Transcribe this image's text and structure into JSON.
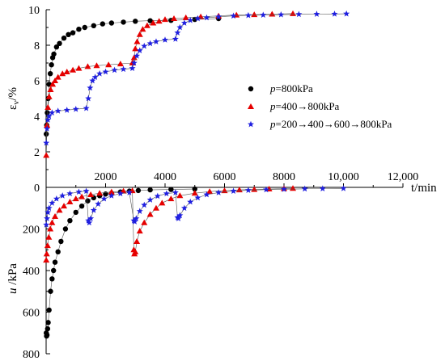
{
  "chart_data": {
    "type": "scatter",
    "x_axis": {
      "label": "t/min",
      "ticks": [
        2000,
        4000,
        6000,
        8000,
        10000,
        12000
      ],
      "tick_labels": [
        "2000",
        "4000",
        "6000",
        "8000",
        "10,000",
        "12,000"
      ],
      "range": [
        0,
        12000
      ]
    },
    "y_axis_top": {
      "label": "εv/%",
      "label_main": "ε",
      "label_sub": "v",
      "label_unit": "/%",
      "range": [
        0,
        10
      ],
      "ticks": [
        0,
        2,
        4,
        6,
        8,
        10
      ],
      "tick_labels": [
        "0",
        "2",
        "4",
        "6",
        "8",
        "10"
      ]
    },
    "y_axis_bottom": {
      "label": "u /kPa",
      "label_var": "u",
      "label_unit": " /kPa",
      "range": [
        0,
        800
      ],
      "inverted": true,
      "ticks": [
        200,
        400,
        600,
        800
      ],
      "tick_labels": [
        "200",
        "400",
        "600",
        "800"
      ]
    },
    "legend": {
      "placement": "right",
      "entries": [
        {
          "var": "p",
          "text": "=800kPa",
          "marker": "circle",
          "color": "#000000"
        },
        {
          "var": "p",
          "text": "=400→800kPa",
          "marker": "triangle",
          "color": "#e60000"
        },
        {
          "var": "p",
          "text": "=200→400→600→800kPa",
          "marker": "star",
          "color": "#1f1fe0"
        }
      ]
    },
    "series": [
      {
        "name": "p=800kPa",
        "color": "#000000",
        "marker": "circle",
        "strain": [
          [
            5,
            3
          ],
          [
            20,
            3.5
          ],
          [
            40,
            4.2
          ],
          [
            70,
            5.0
          ],
          [
            100,
            5.8
          ],
          [
            140,
            6.4
          ],
          [
            180,
            6.9
          ],
          [
            220,
            7.3
          ],
          [
            260,
            7.5
          ],
          [
            350,
            7.9
          ],
          [
            450,
            8.1
          ],
          [
            600,
            8.4
          ],
          [
            750,
            8.6
          ],
          [
            900,
            8.7
          ],
          [
            1100,
            8.9
          ],
          [
            1300,
            9.0
          ],
          [
            1600,
            9.1
          ],
          [
            1900,
            9.2
          ],
          [
            2200,
            9.25
          ],
          [
            2600,
            9.3
          ],
          [
            3000,
            9.35
          ],
          [
            3500,
            9.38
          ],
          [
            4200,
            9.4
          ],
          [
            5000,
            9.45
          ],
          [
            5800,
            9.5
          ]
        ],
        "pore_pressure": [
          [
            5,
            700
          ],
          [
            15,
            715
          ],
          [
            30,
            710
          ],
          [
            50,
            680
          ],
          [
            70,
            650
          ],
          [
            100,
            590
          ],
          [
            150,
            500
          ],
          [
            200,
            440
          ],
          [
            250,
            400
          ],
          [
            300,
            360
          ],
          [
            400,
            310
          ],
          [
            500,
            260
          ],
          [
            650,
            200
          ],
          [
            800,
            160
          ],
          [
            1000,
            120
          ],
          [
            1200,
            90
          ],
          [
            1400,
            65
          ],
          [
            1600,
            50
          ],
          [
            1800,
            40
          ],
          [
            2000,
            32
          ],
          [
            2200,
            28
          ],
          [
            2500,
            22
          ],
          [
            2800,
            18
          ],
          [
            3100,
            15
          ],
          [
            3500,
            12
          ],
          [
            4200,
            10
          ],
          [
            5000,
            8
          ]
        ]
      },
      {
        "name": "p=400→800kPa",
        "color": "#e60000",
        "marker": "triangle",
        "strain": [
          [
            5,
            1.8
          ],
          [
            30,
            3.5
          ],
          [
            60,
            4.5
          ],
          [
            100,
            5.1
          ],
          [
            150,
            5.5
          ],
          [
            220,
            5.8
          ],
          [
            300,
            6.0
          ],
          [
            400,
            6.2
          ],
          [
            550,
            6.4
          ],
          [
            700,
            6.5
          ],
          [
            900,
            6.6
          ],
          [
            1100,
            6.7
          ],
          [
            1400,
            6.8
          ],
          [
            1700,
            6.85
          ],
          [
            2100,
            6.9
          ],
          [
            2500,
            6.95
          ],
          [
            2900,
            7.0
          ],
          [
            2960,
            7.3
          ],
          [
            3000,
            7.8
          ],
          [
            3060,
            8.2
          ],
          [
            3150,
            8.6
          ],
          [
            3250,
            8.9
          ],
          [
            3400,
            9.1
          ],
          [
            3600,
            9.25
          ],
          [
            3800,
            9.35
          ],
          [
            4000,
            9.45
          ],
          [
            4300,
            9.5
          ],
          [
            4700,
            9.55
          ],
          [
            5200,
            9.6
          ],
          [
            5800,
            9.65
          ],
          [
            6400,
            9.7
          ],
          [
            7000,
            9.72
          ],
          [
            7600,
            9.75
          ],
          [
            8300,
            9.78
          ]
        ],
        "pore_pressure": [
          [
            5,
            350
          ],
          [
            20,
            320
          ],
          [
            50,
            280
          ],
          [
            90,
            240
          ],
          [
            140,
            200
          ],
          [
            200,
            170
          ],
          [
            300,
            140
          ],
          [
            450,
            110
          ],
          [
            600,
            90
          ],
          [
            800,
            70
          ],
          [
            1000,
            55
          ],
          [
            1200,
            45
          ],
          [
            1500,
            35
          ],
          [
            1800,
            28
          ],
          [
            2200,
            22
          ],
          [
            2600,
            18
          ],
          [
            2900,
            16
          ],
          [
            2950,
            300
          ],
          [
            2970,
            320
          ],
          [
            3000,
            310
          ],
          [
            3050,
            260
          ],
          [
            3150,
            210
          ],
          [
            3300,
            170
          ],
          [
            3500,
            130
          ],
          [
            3700,
            100
          ],
          [
            3900,
            75
          ],
          [
            4200,
            55
          ],
          [
            4500,
            40
          ],
          [
            5000,
            28
          ],
          [
            5500,
            20
          ],
          [
            6000,
            16
          ],
          [
            6500,
            12
          ],
          [
            7000,
            10
          ],
          [
            7500,
            8
          ],
          [
            8000,
            6
          ],
          [
            8300,
            5
          ]
        ]
      },
      {
        "name": "p=200→400→600→800kPa",
        "color": "#1f1fe0",
        "marker": "star",
        "strain": [
          [
            5,
            2.5
          ],
          [
            30,
            3.3
          ],
          [
            60,
            3.8
          ],
          [
            100,
            4.0
          ],
          [
            200,
            4.2
          ],
          [
            400,
            4.3
          ],
          [
            700,
            4.35
          ],
          [
            1000,
            4.4
          ],
          [
            1350,
            4.45
          ],
          [
            1420,
            5.0
          ],
          [
            1480,
            5.6
          ],
          [
            1560,
            6.0
          ],
          [
            1650,
            6.2
          ],
          [
            1800,
            6.4
          ],
          [
            2000,
            6.5
          ],
          [
            2300,
            6.6
          ],
          [
            2600,
            6.65
          ],
          [
            2900,
            6.7
          ],
          [
            2960,
            7.0
          ],
          [
            3050,
            7.4
          ],
          [
            3150,
            7.7
          ],
          [
            3300,
            7.95
          ],
          [
            3500,
            8.1
          ],
          [
            3700,
            8.2
          ],
          [
            4000,
            8.3
          ],
          [
            4350,
            8.35
          ],
          [
            4420,
            8.7
          ],
          [
            4500,
            9.0
          ],
          [
            4650,
            9.25
          ],
          [
            4850,
            9.4
          ],
          [
            5100,
            9.5
          ],
          [
            5400,
            9.55
          ],
          [
            5800,
            9.6
          ],
          [
            6300,
            9.65
          ],
          [
            6800,
            9.68
          ],
          [
            7300,
            9.7
          ],
          [
            7900,
            9.72
          ],
          [
            8500,
            9.74
          ],
          [
            9100,
            9.75
          ],
          [
            9700,
            9.76
          ],
          [
            10100,
            9.77
          ]
        ],
        "pore_pressure": [
          [
            5,
            180
          ],
          [
            30,
            150
          ],
          [
            60,
            120
          ],
          [
            100,
            100
          ],
          [
            200,
            75
          ],
          [
            350,
            55
          ],
          [
            550,
            40
          ],
          [
            800,
            30
          ],
          [
            1100,
            22
          ],
          [
            1350,
            18
          ],
          [
            1420,
            160
          ],
          [
            1450,
            170
          ],
          [
            1500,
            150
          ],
          [
            1600,
            110
          ],
          [
            1750,
            80
          ],
          [
            1950,
            55
          ],
          [
            2200,
            40
          ],
          [
            2500,
            30
          ],
          [
            2800,
            25
          ],
          [
            2950,
            160
          ],
          [
            2980,
            165
          ],
          [
            3030,
            150
          ],
          [
            3150,
            115
          ],
          [
            3300,
            85
          ],
          [
            3500,
            60
          ],
          [
            3750,
            42
          ],
          [
            4050,
            30
          ],
          [
            4350,
            25
          ],
          [
            4420,
            145
          ],
          [
            4450,
            150
          ],
          [
            4500,
            135
          ],
          [
            4650,
            100
          ],
          [
            4850,
            70
          ],
          [
            5100,
            50
          ],
          [
            5400,
            35
          ],
          [
            5800,
            25
          ],
          [
            6300,
            18
          ],
          [
            6800,
            14
          ],
          [
            7400,
            11
          ],
          [
            8000,
            9
          ],
          [
            8700,
            7
          ],
          [
            9300,
            6
          ],
          [
            10000,
            5
          ]
        ]
      }
    ]
  }
}
